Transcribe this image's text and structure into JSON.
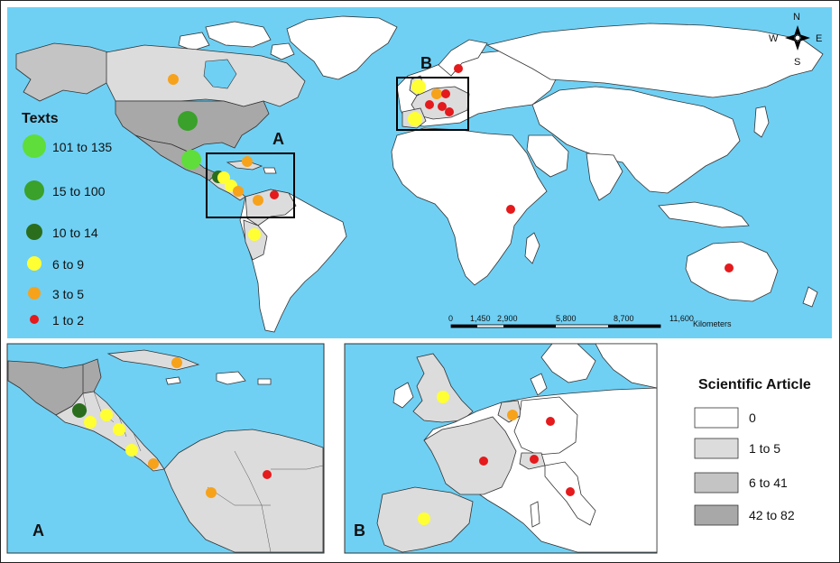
{
  "compass": {
    "n": "N",
    "s": "S",
    "e": "E",
    "w": "W"
  },
  "inset_labels": {
    "a_box": "A",
    "b_box": "B",
    "a_panel": "A",
    "b_panel": "B"
  },
  "texts_legend": {
    "title": "Texts",
    "items": [
      {
        "label": "101 to 135",
        "color": "#5fdd3a"
      },
      {
        "label": "15 to 100",
        "color": "#3aa12a"
      },
      {
        "label": "10 to 14",
        "color": "#2a6e1d"
      },
      {
        "label": "6 to 9",
        "color": "#ffff33"
      },
      {
        "label": "3 to 5",
        "color": "#f7a21b"
      },
      {
        "label": "1 to 2",
        "color": "#e41a1c"
      }
    ]
  },
  "article_legend": {
    "title": "Scientific Article",
    "items": [
      {
        "label": "0",
        "color": "#ffffff"
      },
      {
        "label": "1 to 5",
        "color": "#dcdcdc"
      },
      {
        "label": "6 to 41",
        "color": "#c4c4c4"
      },
      {
        "label": "42 to 82",
        "color": "#a8a8a8"
      }
    ]
  },
  "scale_bar": {
    "ticks": [
      "0",
      "1,450",
      "2,900",
      "5,800",
      "8,700",
      "11,600"
    ],
    "unit": "Kilometers"
  },
  "colors": {
    "ocean": "#6fd0f4",
    "land": "#ffffff"
  }
}
